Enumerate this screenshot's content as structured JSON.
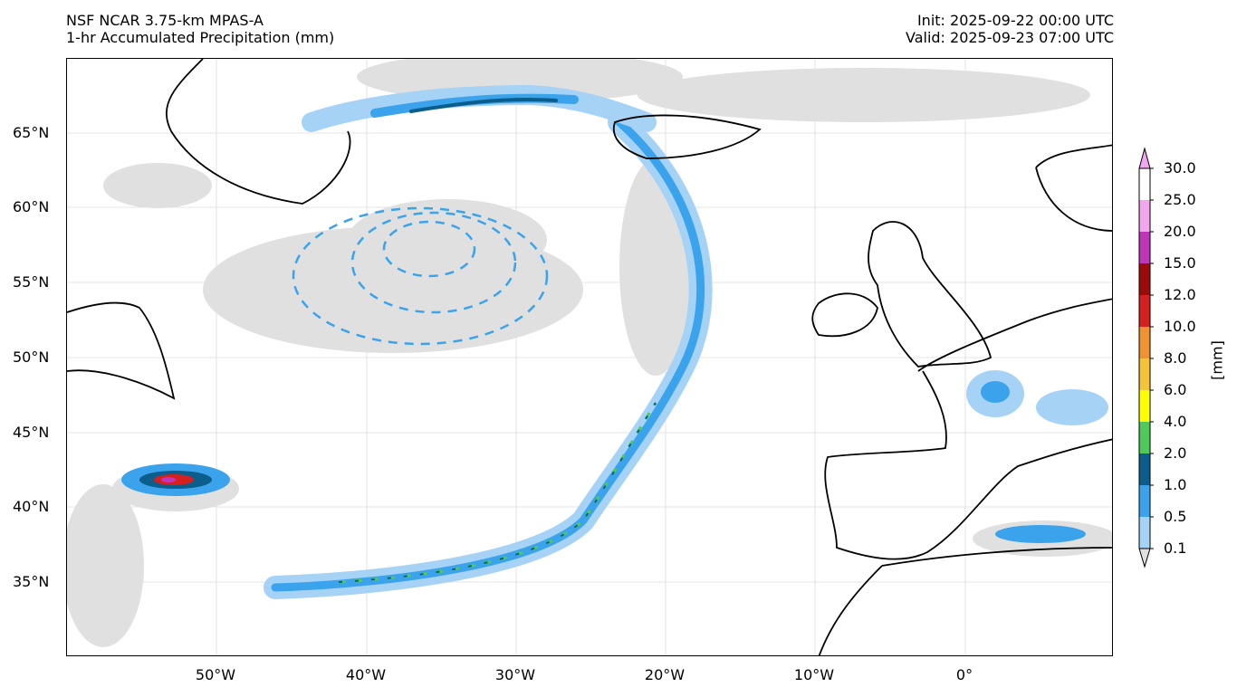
{
  "header": {
    "model_name": "NSF NCAR 3.75-km MPAS-A",
    "field_name": "1-hr Accumulated Precipitation (mm)",
    "init_time": "Init: 2025-09-22 00:00 UTC",
    "valid_time": "Valid: 2025-09-23 07:00 UTC"
  },
  "axes": {
    "lat_labels": [
      "65°N",
      "60°N",
      "55°N",
      "50°N",
      "45°N",
      "40°N",
      "35°N"
    ],
    "lon_labels": [
      "50°W",
      "40°W",
      "30°W",
      "20°W",
      "10°W",
      "0°"
    ]
  },
  "colorbar": {
    "units": "[mm]",
    "levels": [
      "0.1",
      "0.5",
      "1.0",
      "2.0",
      "4.0",
      "6.0",
      "8.0",
      "10.0",
      "12.0",
      "15.0",
      "20.0",
      "25.0",
      "30.0"
    ],
    "colors": [
      "#e0e0e0",
      "#a6d3f5",
      "#3aa3ec",
      "#0b5e8c",
      "#4ec95a",
      "#ffff00",
      "#f4c33a",
      "#ee9232",
      "#d62020",
      "#9c0a0a",
      "#c036b8",
      "#f2a6ee"
    ]
  },
  "map": {
    "region": "North Atlantic and Western Europe",
    "lon_range": [
      "60°W",
      "10°E"
    ],
    "lat_range": [
      "30°N",
      "70°N"
    ]
  }
}
